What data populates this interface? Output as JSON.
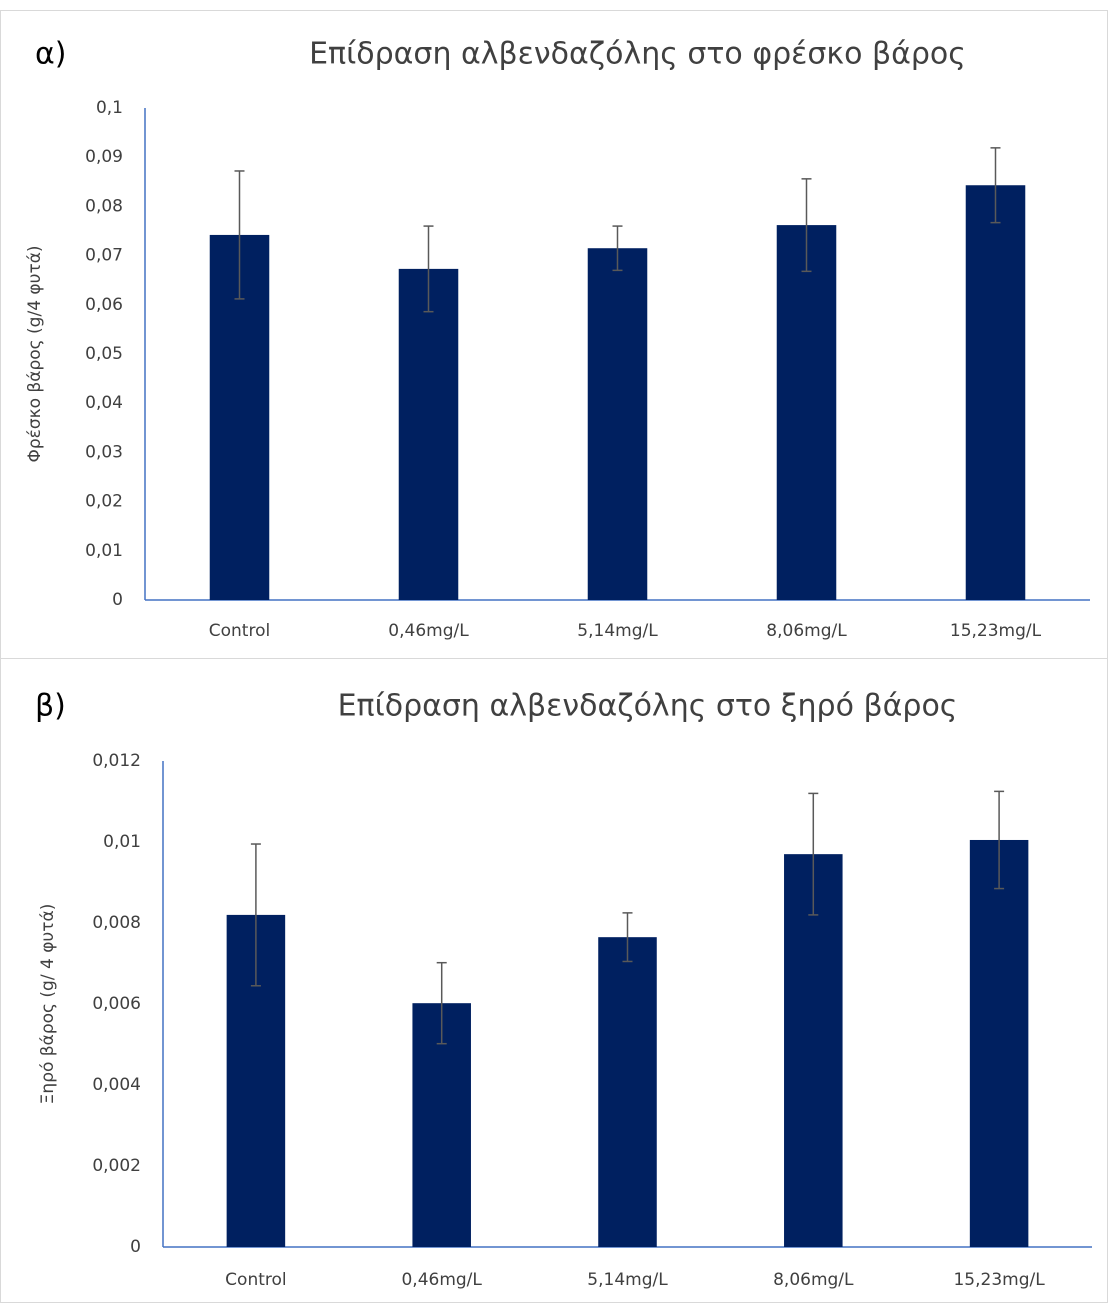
{
  "chart_data": [
    {
      "type": "bar",
      "panel_label": "α)",
      "title": "Επίδραση αλβενδαζόλης στο φρέσκο βάρος",
      "y_label": "Φρέσκο βάρος (g/4 φυτά)",
      "categories": [
        "Control",
        "0,46mg/L",
        "5,14mg/L",
        "8,06mg/L",
        "15,23mg/L"
      ],
      "values": [
        0.0742,
        0.0673,
        0.0715,
        0.0762,
        0.0843
      ],
      "errors": [
        0.013,
        0.0087,
        0.0045,
        0.0094,
        0.0076
      ],
      "color": "#002060",
      "error_color": "#595959",
      "grid": false,
      "ylim": [
        0,
        0.1
      ],
      "yticks": [
        0,
        {
          "value": 0.01,
          "label": "0,01"
        },
        {
          "value": 0.02,
          "label": "0,02"
        },
        {
          "value": 0.03,
          "label": "0,03"
        },
        {
          "value": 0.04,
          "label": "0,04"
        },
        {
          "value": 0.05,
          "label": "0,05"
        },
        {
          "value": 0.06,
          "label": "0,06"
        },
        {
          "value": 0.07,
          "label": "0,07"
        },
        {
          "value": 0.08,
          "label": "0,08"
        },
        {
          "value": 0.09,
          "label": "0,09"
        },
        {
          "value": 0.1,
          "label": "0,1"
        }
      ]
    },
    {
      "type": "bar",
      "panel_label": "β)",
      "title": "Επίδραση αλβενδαζόλης στο ξηρό βάρος",
      "y_label": "Ξηρό βάρος (g/ 4 φυτά)",
      "categories": [
        "Control",
        "0,46mg/L",
        "5,14mg/L",
        "8,06mg/L",
        "15,23mg/L"
      ],
      "values": [
        0.0082,
        0.00602,
        0.00765,
        0.0097,
        0.01005
      ],
      "errors": [
        0.00175,
        0.001,
        0.0006,
        0.0015,
        0.0012
      ],
      "color": "#002060",
      "error_color": "#595959",
      "grid": false,
      "ylim": [
        0,
        0.012
      ],
      "yticks": [
        0,
        {
          "value": 0.002,
          "label": "0,002"
        },
        {
          "value": 0.004,
          "label": "0,004"
        },
        {
          "value": 0.006,
          "label": "0,006"
        },
        {
          "value": 0.008,
          "label": "0,008"
        },
        {
          "value": 0.01,
          "label": "0,01"
        },
        {
          "value": 0.012,
          "label": "0,012"
        }
      ]
    }
  ]
}
